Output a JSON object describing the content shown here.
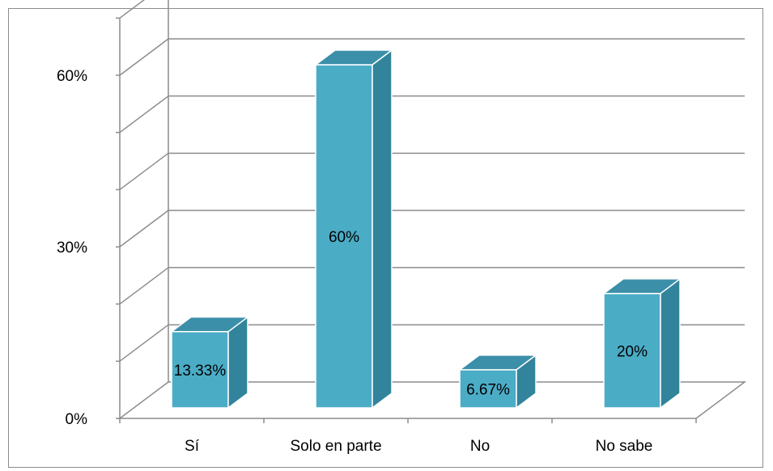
{
  "chart_data": {
    "type": "bar",
    "categories": [
      "Sí",
      "Solo en parte",
      "No",
      "No sabe"
    ],
    "values": [
      13.33,
      60,
      6.67,
      20
    ],
    "data_labels": [
      "13.33%",
      "60%",
      "6.67%",
      "20%"
    ],
    "ylim": [
      0,
      60
    ],
    "y_ticks": [
      {
        "value": 0,
        "label": "0%"
      },
      {
        "value": 30,
        "label": "30%"
      },
      {
        "value": 60,
        "label": "60%"
      }
    ],
    "grid": true,
    "style": "3d-column",
    "colors": {
      "front": "#4BACC6",
      "side": "#31849B",
      "top": "#3B8FA8",
      "grid": "#8c8c8c",
      "border": "#8c8c8c"
    }
  }
}
